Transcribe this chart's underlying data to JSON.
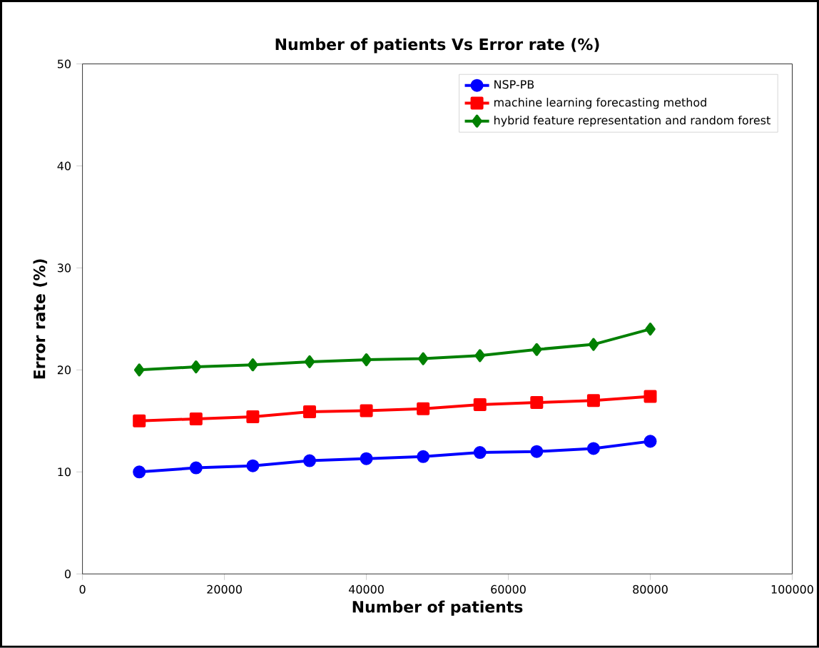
{
  "chart_data": {
    "type": "line",
    "title": "Number of patients  Vs Error rate (%)",
    "xlabel": "Number of patients",
    "ylabel": "Error rate (%)",
    "x": [
      8000,
      16000,
      24000,
      32000,
      40000,
      48000,
      56000,
      64000,
      72000,
      80000
    ],
    "series": [
      {
        "name": "NSP-PB",
        "color": "#0000ff",
        "marker": "circle",
        "values": [
          10,
          10.4,
          10.6,
          11.1,
          11.3,
          11.5,
          11.9,
          12.0,
          12.3,
          13.0
        ]
      },
      {
        "name": "machine learning forecasting method",
        "color": "#ff0000",
        "marker": "square",
        "values": [
          15.0,
          15.2,
          15.4,
          15.9,
          16.0,
          16.2,
          16.6,
          16.8,
          17.0,
          17.4
        ]
      },
      {
        "name": "hybrid feature representation and random forest",
        "color": "#008000",
        "marker": "diamond",
        "values": [
          20.0,
          20.3,
          20.5,
          20.8,
          21.0,
          21.1,
          21.4,
          22.0,
          22.5,
          24.0
        ]
      }
    ],
    "xlim": [
      0,
      100000
    ],
    "xticks": [
      0,
      20000,
      40000,
      60000,
      80000,
      100000
    ],
    "ylim": [
      0,
      50
    ],
    "yticks": [
      0,
      10,
      20,
      30,
      40,
      50
    ],
    "grid": false,
    "legend": "top right",
    "line_style": "solid"
  }
}
